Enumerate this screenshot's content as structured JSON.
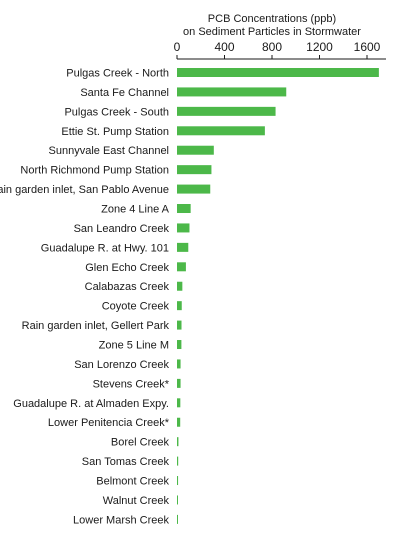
{
  "chart_data": {
    "type": "bar",
    "orientation": "horizontal",
    "title": "PCB Concentrations (ppb)\non Sediment Particles in Stormwater",
    "xlim": [
      0,
      1760
    ],
    "xticks": [
      0,
      400,
      800,
      1200,
      1600
    ],
    "bar_color": "#4cb849",
    "grid": false,
    "categories": [
      "Pulgas Creek - North",
      "Santa Fe Channel",
      "Pulgas Creek - South",
      "Ettie St. Pump Station",
      "Sunnyvale East Channel",
      "North Richmond Pump Station",
      "Rain garden inlet, San Pablo Avenue",
      "Zone 4 Line A",
      "San Leandro Creek",
      "Guadalupe R. at Hwy. 101",
      "Glen Echo Creek",
      "Calabazas Creek",
      "Coyote Creek",
      "Rain garden inlet, Gellert Park",
      "Zone 5 Line M",
      "San Lorenzo Creek",
      "Stevens Creek*",
      "Guadalupe R. at Almaden Expy.",
      "Lower Penitencia Creek*",
      "Borel Creek",
      "San Tomas Creek",
      "Belmont Creek",
      "Walnut Creek",
      "Lower Marsh Creek"
    ],
    "values": [
      1700,
      920,
      830,
      740,
      310,
      290,
      280,
      115,
      105,
      95,
      75,
      45,
      40,
      38,
      37,
      30,
      30,
      28,
      27,
      12,
      10,
      9,
      8,
      7
    ]
  }
}
